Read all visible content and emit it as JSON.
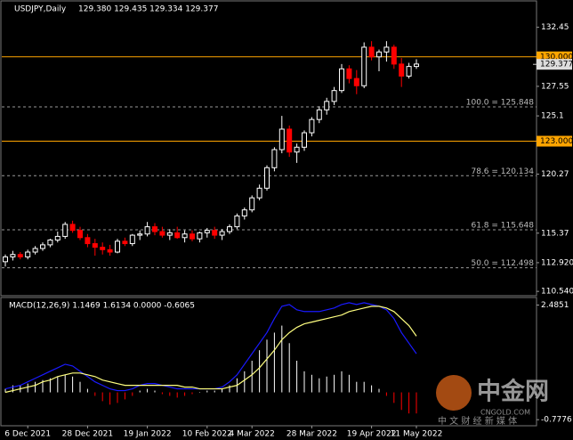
{
  "chart_data": [
    {
      "type": "candlestick",
      "title": "USDJPY,Daily",
      "ohlc_label": "129.380 129.435 129.334 129.377",
      "up_color": "#ffffff",
      "down_color": "#ff0000",
      "open": [
        113.0,
        113.4,
        113.6,
        113.4,
        113.8,
        114.1,
        114.4,
        114.8,
        115.1,
        116.1,
        115.6,
        115.0,
        114.5,
        114.2,
        114.0,
        113.8,
        114.7,
        114.5,
        115.2,
        115.3,
        115.9,
        115.5,
        115.2,
        115.4,
        115.0,
        115.3,
        114.9,
        115.4,
        115.6,
        115.2,
        115.5,
        115.9,
        116.8,
        117.3,
        118.3,
        119.1,
        120.8,
        122.3,
        124.0,
        122.1,
        122.5,
        123.7,
        124.8,
        125.6,
        126.3,
        127.2,
        129.0,
        128.2,
        127.6,
        130.8,
        130.0,
        130.4,
        130.8,
        129.4,
        128.4,
        129.2
      ],
      "high": [
        113.6,
        113.9,
        113.8,
        114.0,
        114.3,
        114.6,
        114.9,
        115.5,
        116.3,
        116.4,
        115.9,
        115.3,
        114.9,
        114.6,
        114.4,
        114.9,
        115.0,
        115.3,
        115.6,
        116.3,
        116.2,
        115.9,
        115.7,
        115.9,
        115.6,
        115.6,
        115.5,
        115.8,
        115.9,
        115.7,
        116.1,
        117.0,
        117.5,
        118.5,
        119.4,
        121.0,
        122.5,
        125.1,
        124.3,
        122.8,
        123.9,
        125.0,
        125.9,
        126.6,
        127.5,
        129.4,
        129.3,
        128.9,
        131.2,
        131.3,
        130.6,
        131.3,
        131.0,
        129.9,
        129.5,
        129.8
      ],
      "low": [
        112.6,
        113.1,
        113.2,
        113.2,
        113.6,
        113.9,
        114.2,
        114.6,
        114.9,
        115.4,
        114.8,
        114.2,
        113.5,
        113.6,
        113.5,
        113.7,
        114.3,
        114.3,
        114.8,
        115.1,
        115.2,
        115.0,
        114.8,
        114.9,
        114.6,
        114.7,
        114.6,
        115.0,
        114.9,
        114.8,
        115.3,
        115.7,
        116.5,
        117.1,
        118.1,
        118.9,
        120.5,
        122.0,
        121.7,
        121.2,
        122.2,
        123.4,
        124.5,
        125.2,
        126.0,
        127.0,
        127.8,
        126.9,
        127.4,
        129.7,
        128.8,
        129.6,
        129.0,
        127.5,
        128.2,
        129.0
      ],
      "close": [
        113.4,
        113.6,
        113.4,
        113.8,
        114.1,
        114.4,
        114.8,
        115.1,
        116.1,
        115.6,
        115.0,
        114.5,
        114.2,
        114.0,
        113.8,
        114.7,
        114.5,
        115.2,
        115.3,
        115.9,
        115.5,
        115.2,
        115.4,
        115.0,
        115.3,
        114.9,
        115.4,
        115.6,
        115.2,
        115.5,
        115.9,
        116.8,
        117.3,
        118.3,
        119.1,
        120.8,
        122.3,
        124.0,
        122.1,
        122.5,
        123.7,
        124.8,
        125.6,
        126.3,
        127.2,
        129.0,
        128.2,
        127.6,
        130.8,
        130.0,
        130.4,
        130.8,
        129.4,
        128.4,
        129.2,
        129.4
      ],
      "ylim": [
        110.18,
        134.64
      ],
      "yticks": [
        132.45,
        127.55,
        125.1,
        120.27,
        115.37,
        {
          "value": 112.92,
          "label": "112.920"
        },
        {
          "value": 110.54,
          "label": "110.540"
        }
      ],
      "levels": [
        {
          "value": 130,
          "label": "130.000",
          "color": "#ffa500"
        },
        {
          "value": 123,
          "label": "123.000",
          "color": "#ffa500"
        }
      ],
      "last_price": {
        "value": 129.377,
        "label": "129.377"
      },
      "fibo": [
        {
          "value": 125.848,
          "label": "100.0 = 125.848"
        },
        {
          "value": 120.134,
          "label": "78.6 = 120.134"
        },
        {
          "value": 115.648,
          "label": "61.8 = 115.648"
        },
        {
          "value": 112.498,
          "label": "50.0 = 112.498"
        }
      ]
    },
    {
      "type": "macd",
      "title": "MACD(12,26,9) 1.1469 1.6134 0.0000 -0.6065",
      "categories": [
        null,
        null,
        null,
        "6 Dec 2021",
        null,
        null,
        null,
        null,
        null,
        null,
        null,
        "28 Dec 2021",
        null,
        null,
        null,
        null,
        null,
        null,
        null,
        "19 Jan 2022",
        null,
        null,
        null,
        null,
        null,
        null,
        null,
        "10 Feb 2022",
        null,
        null,
        null,
        null,
        null,
        "4 Mar 2022",
        null,
        null,
        null,
        null,
        null,
        null,
        null,
        "28 Mar 2022",
        null,
        null,
        null,
        null,
        null,
        null,
        null,
        "19 Apr 2022",
        null,
        null,
        null,
        null,
        null,
        "11 May 2022"
      ],
      "histogram": {
        "up_color": "#ffffff",
        "down_color": "#ff0000",
        "values": [
          0.1,
          0.2,
          0.2,
          0.25,
          0.3,
          0.35,
          0.4,
          0.45,
          0.5,
          0.45,
          0.3,
          0.1,
          -0.1,
          -0.25,
          -0.35,
          -0.3,
          -0.2,
          -0.1,
          0.05,
          0.1,
          0.05,
          -0.05,
          -0.1,
          -0.15,
          -0.1,
          -0.05,
          0.0,
          0.05,
          0.05,
          0.1,
          0.2,
          0.4,
          0.6,
          0.9,
          1.2,
          1.5,
          1.7,
          1.9,
          1.4,
          0.9,
          0.6,
          0.5,
          0.4,
          0.45,
          0.5,
          0.6,
          0.5,
          0.3,
          0.3,
          0.2,
          0.1,
          -0.1,
          -0.3,
          -0.5,
          -0.6,
          -0.6
        ]
      },
      "series": [
        {
          "color": "#1a1aff",
          "values": [
            0.1,
            0.15,
            0.2,
            0.3,
            0.4,
            0.5,
            0.6,
            0.7,
            0.8,
            0.75,
            0.6,
            0.45,
            0.3,
            0.2,
            0.1,
            0.05,
            0.05,
            0.1,
            0.2,
            0.25,
            0.25,
            0.2,
            0.15,
            0.1,
            0.1,
            0.1,
            0.1,
            0.1,
            0.1,
            0.15,
            0.3,
            0.5,
            0.8,
            1.1,
            1.4,
            1.7,
            2.1,
            2.45,
            2.5,
            2.35,
            2.3,
            2.3,
            2.3,
            2.35,
            2.4,
            2.5,
            2.55,
            2.5,
            2.55,
            2.5,
            2.45,
            2.35,
            2.1,
            1.7,
            1.4,
            1.1
          ]
        },
        {
          "color": "#ffff80",
          "values": [
            0.0,
            0.05,
            0.1,
            0.15,
            0.2,
            0.3,
            0.35,
            0.45,
            0.5,
            0.55,
            0.55,
            0.5,
            0.45,
            0.35,
            0.3,
            0.25,
            0.2,
            0.2,
            0.2,
            0.2,
            0.2,
            0.2,
            0.2,
            0.2,
            0.15,
            0.15,
            0.1,
            0.1,
            0.1,
            0.1,
            0.15,
            0.2,
            0.35,
            0.5,
            0.7,
            0.95,
            1.2,
            1.5,
            1.7,
            1.85,
            1.95,
            2.0,
            2.05,
            2.1,
            2.15,
            2.2,
            2.3,
            2.35,
            2.4,
            2.45,
            2.45,
            2.4,
            2.3,
            2.1,
            1.9,
            1.6
          ]
        }
      ],
      "ylim": [
        -0.95,
        2.7
      ],
      "yticks": [
        {
          "value": 2.4851,
          "label": "2.4851"
        },
        {
          "value": -0.7776,
          "label": "-0.7776"
        }
      ]
    }
  ],
  "watermark": {
    "logo": "中金网",
    "tagline": "中 文 财 经 新 媒 体",
    "site": "CNGOLD.COM"
  }
}
